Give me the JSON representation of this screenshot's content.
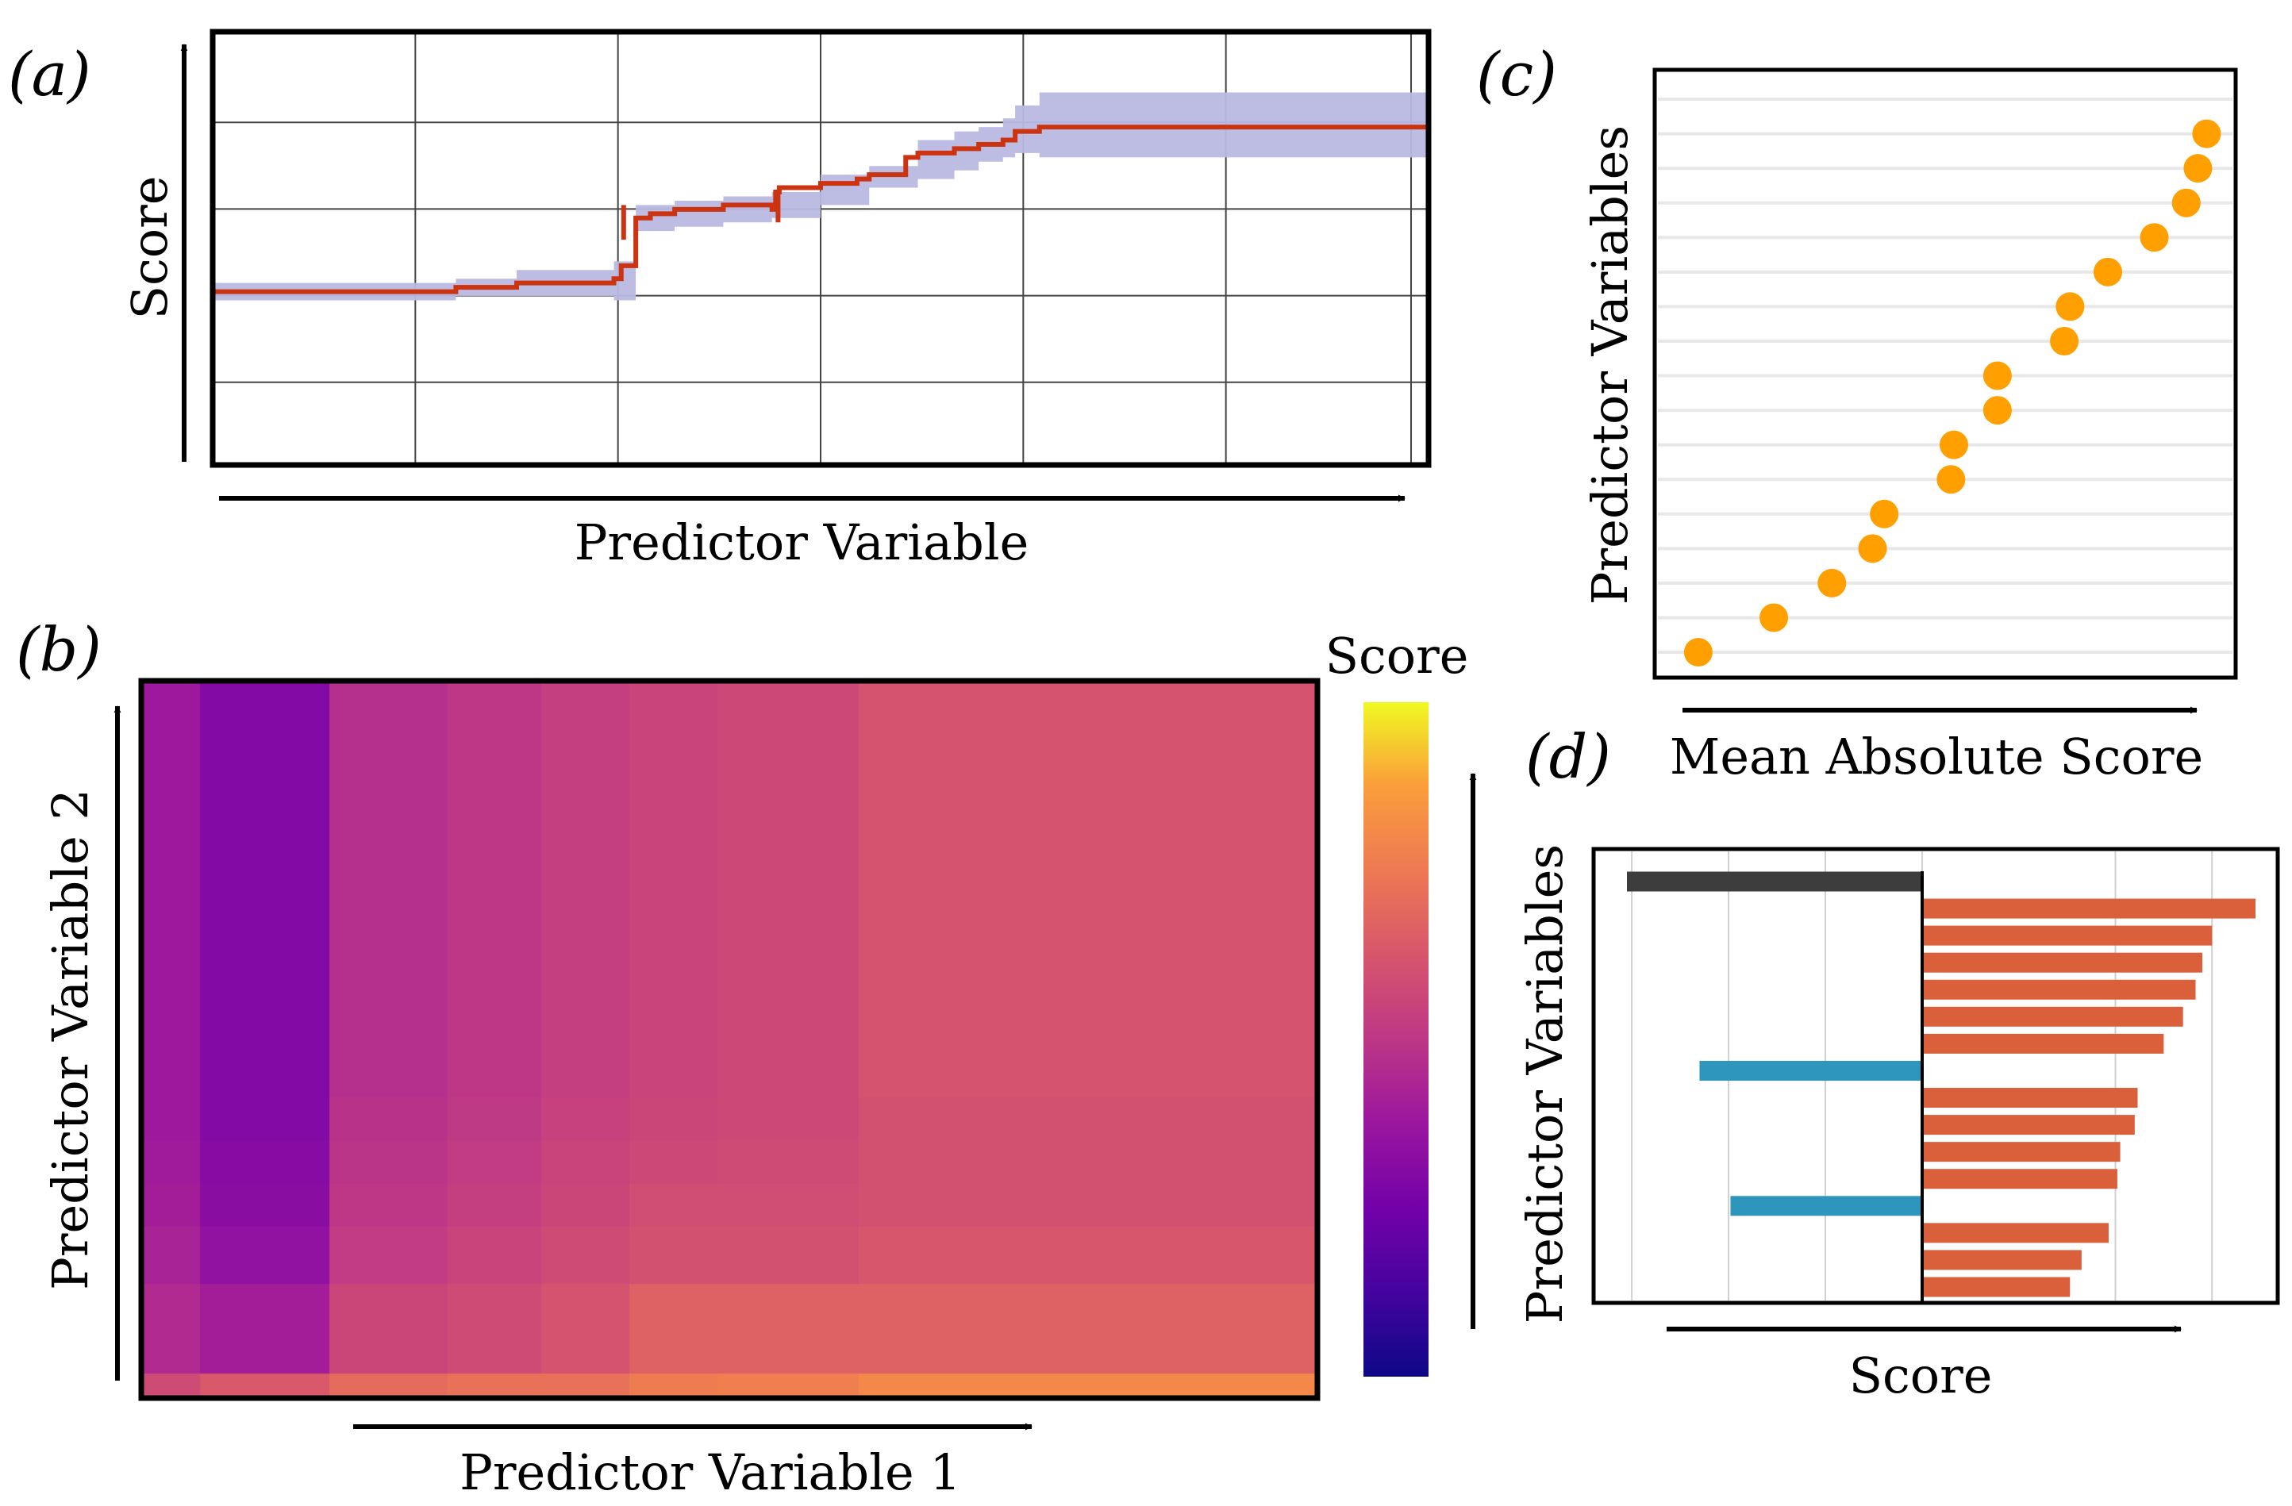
{
  "chart_data": [
    {
      "panel": "(a)",
      "type": "line",
      "xlabel": "Predictor Variable",
      "ylabel": "Score",
      "xlim": [
        0,
        100
      ],
      "ylim": [
        0,
        100
      ],
      "grid": true,
      "series": [
        {
          "name": "mean",
          "color": "#cc3311",
          "x": [
            0,
            16,
            20,
            25,
            33,
            33.6,
            34.8,
            36,
            38,
            42,
            46,
            46.3,
            46.6,
            50,
            53,
            54,
            57,
            58,
            61,
            63,
            65,
            66,
            68,
            100
          ],
          "y": [
            40,
            40,
            41,
            42,
            43,
            46,
            57,
            58,
            59,
            60,
            59,
            63,
            64,
            65,
            66,
            67,
            71,
            72,
            73,
            74,
            75,
            77,
            78,
            78
          ]
        }
      ],
      "band": {
        "color": "#b9b9e3",
        "x": [
          0,
          16,
          20,
          25,
          33,
          34.8,
          38,
          42,
          46,
          50,
          54,
          58,
          61,
          63,
          65,
          66,
          68,
          100
        ],
        "lower": [
          38,
          38,
          39,
          39,
          38,
          54,
          55,
          56,
          57,
          60,
          64,
          66,
          68,
          70,
          71,
          72,
          71,
          71
        ],
        "upper": [
          42,
          42,
          43,
          45,
          47,
          60,
          61,
          62,
          63,
          67,
          69,
          75,
          77,
          78,
          80,
          83,
          86,
          86
        ]
      }
    },
    {
      "panel": "(b)",
      "type": "heatmap",
      "xlabel": "Predictor Variable 1",
      "ylabel": "Predictor Variable 2",
      "colorbar_label": "Score",
      "colormap": "plasma",
      "x_edges": [
        0,
        5,
        16,
        26,
        34,
        41.5,
        49,
        61,
        100
      ],
      "y_edges": [
        0,
        3.5,
        16,
        24,
        30,
        36,
        42,
        100
      ],
      "values": [
        [
          0.58,
          0.63,
          0.7,
          0.72,
          0.72,
          0.76,
          0.77,
          0.8
        ],
        [
          0.45,
          0.4,
          0.56,
          0.58,
          0.61,
          0.66,
          0.66,
          0.66
        ],
        [
          0.42,
          0.34,
          0.52,
          0.55,
          0.58,
          0.6,
          0.6,
          0.62
        ],
        [
          0.4,
          0.32,
          0.5,
          0.53,
          0.56,
          0.59,
          0.59,
          0.6
        ],
        [
          0.39,
          0.31,
          0.49,
          0.52,
          0.55,
          0.57,
          0.58,
          0.6
        ],
        [
          0.38,
          0.3,
          0.48,
          0.51,
          0.54,
          0.56,
          0.57,
          0.6
        ],
        [
          0.38,
          0.3,
          0.47,
          0.5,
          0.53,
          0.55,
          0.57,
          0.61
        ]
      ]
    },
    {
      "panel": "(c)",
      "type": "scatter",
      "xlabel": "Mean Absolute Score",
      "ylabel": "Predictor Variables",
      "color": "#ff9f00",
      "xlim": [
        0,
        100
      ],
      "rows": 17,
      "x": [
        7.5,
        20.5,
        30.5,
        37.5,
        39.5,
        51,
        51.5,
        59,
        59,
        70.5,
        71.5,
        78,
        86,
        91.5,
        93.5,
        95
      ]
    },
    {
      "panel": "(d)",
      "type": "bar",
      "orientation": "horizontal",
      "xlabel": "Score",
      "ylabel": "Predictor Variables",
      "xlim": [
        -3.05,
        3.45
      ],
      "grid_x": [
        -3,
        -2,
        -1,
        0,
        2,
        3
      ],
      "colors": {
        "base": "#3d3d3d",
        "positive": "#d9603b",
        "negative": "#2e96bd"
      },
      "values": [
        -3.05,
        3.45,
        3.0,
        2.9,
        2.83,
        2.7,
        2.5,
        -2.3,
        2.23,
        2.2,
        2.05,
        2.02,
        -1.98,
        1.93,
        1.65,
        1.53
      ]
    }
  ]
}
